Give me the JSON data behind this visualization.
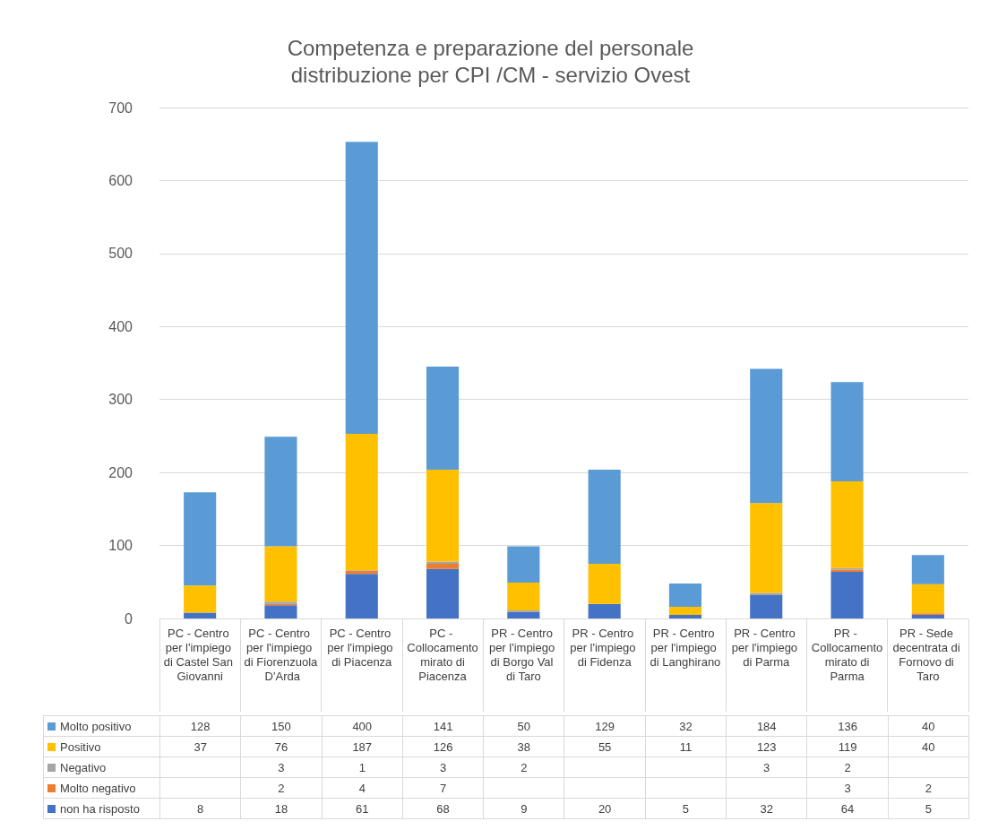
{
  "chart_data": {
    "type": "bar",
    "title": "Competenza e preparazione del personale",
    "subtitle": "distribuzione per CPI /CM - servizio Ovest",
    "categories": [
      "PC - Centro per l'impiego di Castel San Giovanni",
      "PC - Centro per l'impiego di Fiorenzuola D'Arda",
      "PC - Centro per l'impiego di Piacenza",
      "PC - Collocamento mirato di Piacenza",
      "PR - Centro per l'impiego di Borgo Val di Taro",
      "PR - Centro per l'impiego di Fidenza",
      "PR - Centro per l'impiego di Langhirano",
      "PR - Centro per l'impiego di Parma",
      "PR - Collocamento mirato di Parma",
      "PR - Sede decentrata di Fornovo di Taro"
    ],
    "series": [
      {
        "name": "non ha risposto",
        "color": "#4472c4",
        "values": [
          8,
          18,
          61,
          68,
          9,
          20,
          5,
          32,
          64,
          5
        ]
      },
      {
        "name": "Molto negativo",
        "color": "#ed7d31",
        "values": [
          null,
          2,
          4,
          7,
          null,
          null,
          null,
          null,
          3,
          2
        ]
      },
      {
        "name": "Negativo",
        "color": "#a5a5a5",
        "values": [
          null,
          3,
          1,
          3,
          2,
          null,
          null,
          3,
          2,
          null
        ]
      },
      {
        "name": "Positivo",
        "color": "#ffc000",
        "values": [
          37,
          76,
          187,
          126,
          38,
          55,
          11,
          123,
          119,
          40
        ]
      },
      {
        "name": "Molto positivo",
        "color": "#5b9bd5",
        "values": [
          128,
          150,
          400,
          141,
          50,
          129,
          32,
          184,
          136,
          40
        ]
      }
    ],
    "stacked": true,
    "ylim": [
      0,
      700
    ],
    "yticks": [
      0,
      100,
      200,
      300,
      400,
      500,
      600,
      700
    ],
    "grid": "y",
    "legend": "bottom",
    "data_labels": true
  }
}
